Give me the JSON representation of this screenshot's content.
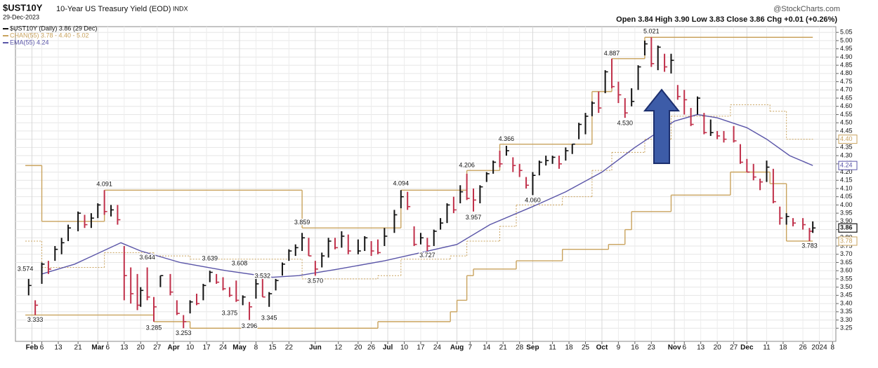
{
  "chart_data": {
    "type": "ohlc",
    "title": "$UST10Y",
    "subtitle": "10-Year US Treasury Yield (EOD)",
    "exchange": "INDX",
    "date_label": "29-Dec-2023",
    "quote": "Open 3.84  High 3.90  Low 3.83  Close 3.86  Chg +0.01 (+0.26%)",
    "source": "@StockCharts.com",
    "xlim": [
      "2023-01-25",
      "2024-01-09"
    ],
    "ylim": [
      3.17,
      5.085
    ],
    "grid": true,
    "xticks": [
      {
        "value": "2023-02-01",
        "label": "Feb"
      },
      {
        "value": "2023-02-06",
        "label": "6"
      },
      {
        "value": "2023-02-13",
        "label": "13"
      },
      {
        "value": "2023-02-21",
        "label": "21"
      },
      {
        "value": "2023-03-01",
        "label": "Mar"
      },
      {
        "value": "2023-03-06",
        "label": "6"
      },
      {
        "value": "2023-03-13",
        "label": "13"
      },
      {
        "value": "2023-03-20",
        "label": "20"
      },
      {
        "value": "2023-03-27",
        "label": "27"
      },
      {
        "value": "2023-04-03",
        "label": "Apr"
      },
      {
        "value": "2023-04-10",
        "label": "10"
      },
      {
        "value": "2023-04-17",
        "label": "17"
      },
      {
        "value": "2023-04-24",
        "label": "24"
      },
      {
        "value": "2023-05-01",
        "label": "May"
      },
      {
        "value": "2023-05-08",
        "label": "8"
      },
      {
        "value": "2023-05-15",
        "label": "15"
      },
      {
        "value": "2023-05-22",
        "label": "22"
      },
      {
        "value": "2023-06-01",
        "label": "Jun"
      },
      {
        "value": "2023-06-12",
        "label": "12"
      },
      {
        "value": "2023-06-20",
        "label": "20"
      },
      {
        "value": "2023-06-26",
        "label": "26"
      },
      {
        "value": "2023-07-03",
        "label": "Jul"
      },
      {
        "value": "2023-07-10",
        "label": "10"
      },
      {
        "value": "2023-07-17",
        "label": "17"
      },
      {
        "value": "2023-07-24",
        "label": "24"
      },
      {
        "value": "2023-08-01",
        "label": "Aug"
      },
      {
        "value": "2023-08-07",
        "label": "7"
      },
      {
        "value": "2023-08-14",
        "label": "14"
      },
      {
        "value": "2023-08-21",
        "label": "21"
      },
      {
        "value": "2023-08-28",
        "label": "28"
      },
      {
        "value": "2023-09-01",
        "label": "Sep"
      },
      {
        "value": "2023-09-11",
        "label": "11"
      },
      {
        "value": "2023-09-18",
        "label": "18"
      },
      {
        "value": "2023-09-25",
        "label": "25"
      },
      {
        "value": "2023-10-02",
        "label": "Oct"
      },
      {
        "value": "2023-10-09",
        "label": "9"
      },
      {
        "value": "2023-10-16",
        "label": "16"
      },
      {
        "value": "2023-10-23",
        "label": "23"
      },
      {
        "value": "2023-11-01",
        "label": "Nov"
      },
      {
        "value": "2023-11-06",
        "label": "6"
      },
      {
        "value": "2023-11-13",
        "label": "13"
      },
      {
        "value": "2023-11-20",
        "label": "20"
      },
      {
        "value": "2023-11-27",
        "label": "27"
      },
      {
        "value": "2023-12-01",
        "label": "Dec"
      },
      {
        "value": "2023-12-11",
        "label": "11"
      },
      {
        "value": "2023-12-18",
        "label": "18"
      },
      {
        "value": "2023-12-26",
        "label": "26"
      },
      {
        "value": "2024-01-02",
        "label": "2024"
      },
      {
        "value": "2024-01-08",
        "label": "8"
      }
    ],
    "yticks": [
      3.25,
      {
        "value": 3.3,
        "label": "3.30"
      },
      3.35,
      {
        "value": 3.4,
        "label": "3.40"
      },
      3.45,
      {
        "value": 3.5,
        "label": "3.50"
      },
      3.55,
      {
        "value": 3.6,
        "label": "3.60"
      },
      3.65,
      {
        "value": 3.7,
        "label": "3.70"
      },
      3.75,
      {
        "value": 3.8,
        "label": "3.80"
      },
      3.85,
      {
        "value": 3.9,
        "label": "3.90"
      },
      3.95,
      {
        "value": 4,
        "label": "4.00"
      },
      4.05,
      {
        "value": 4.1,
        "label": "4.10"
      },
      4.15,
      {
        "value": 4.2,
        "label": "4.20"
      },
      4.25,
      {
        "value": 4.3,
        "label": "4.30"
      },
      4.35,
      {
        "value": 4.4,
        "label": "4.40"
      },
      4.45,
      {
        "value": 4.5,
        "label": "4.50"
      },
      4.55,
      {
        "value": 4.6,
        "label": "4.60"
      },
      4.65,
      {
        "value": 4.7,
        "label": "4.70"
      },
      4.75,
      {
        "value": 4.8,
        "label": "4.80"
      },
      4.85,
      {
        "value": 4.9,
        "label": "4.90"
      },
      4.95,
      {
        "value": 5,
        "label": "5.00"
      },
      5.05
    ],
    "price": {
      "name": "$UST10Y (Daily) 3.86 (29 Dec)",
      "up_color": "#111111",
      "down_color": "#c0304a",
      "close_label": "3.86",
      "x": [
        "2023-01-31",
        "2023-02-02",
        "2023-02-06",
        "2023-02-08",
        "2023-02-10",
        "2023-02-14",
        "2023-02-16",
        "2023-02-21",
        "2023-02-23",
        "2023-02-27",
        "2023-03-01",
        "2023-03-03",
        "2023-03-07",
        "2023-03-09",
        "2023-03-13",
        "2023-03-15",
        "2023-03-17",
        "2023-03-20",
        "2023-03-22",
        "2023-03-24",
        "2023-03-28",
        "2023-03-31",
        "2023-04-04",
        "2023-04-06",
        "2023-04-10",
        "2023-04-12",
        "2023-04-14",
        "2023-04-18",
        "2023-04-20",
        "2023-04-24",
        "2023-04-26",
        "2023-04-28",
        "2023-05-02",
        "2023-05-04",
        "2023-05-08",
        "2023-05-10",
        "2023-05-12",
        "2023-05-16",
        "2023-05-18",
        "2023-05-22",
        "2023-05-24",
        "2023-05-26",
        "2023-05-30",
        "2023-06-01",
        "2023-06-05",
        "2023-06-07",
        "2023-06-09",
        "2023-06-13",
        "2023-06-15",
        "2023-06-20",
        "2023-06-22",
        "2023-06-26",
        "2023-06-28",
        "2023-06-30",
        "2023-07-05",
        "2023-07-07",
        "2023-07-11",
        "2023-07-13",
        "2023-07-17",
        "2023-07-19",
        "2023-07-21",
        "2023-07-25",
        "2023-07-27",
        "2023-07-31",
        "2023-08-02",
        "2023-08-04",
        "2023-08-08",
        "2023-08-10",
        "2023-08-14",
        "2023-08-16",
        "2023-08-18",
        "2023-08-22",
        "2023-08-24",
        "2023-08-28",
        "2023-08-30",
        "2023-09-01",
        "2023-09-05",
        "2023-09-07",
        "2023-09-11",
        "2023-09-13",
        "2023-09-15",
        "2023-09-19",
        "2023-09-21",
        "2023-09-25",
        "2023-09-27",
        "2023-09-29",
        "2023-10-03",
        "2023-10-05",
        "2023-10-09",
        "2023-10-11",
        "2023-10-13",
        "2023-10-17",
        "2023-10-19",
        "2023-10-23",
        "2023-10-25",
        "2023-10-27",
        "2023-10-31",
        "2023-11-02",
        "2023-11-06",
        "2023-11-08",
        "2023-11-10",
        "2023-11-14",
        "2023-11-16",
        "2023-11-20",
        "2023-11-22",
        "2023-11-27",
        "2023-11-29",
        "2023-12-01",
        "2023-12-05",
        "2023-12-07",
        "2023-12-11",
        "2023-12-13",
        "2023-12-15",
        "2023-12-19",
        "2023-12-21",
        "2023-12-26",
        "2023-12-28",
        "2023-12-29"
      ],
      "high": [
        3.55,
        3.42,
        3.65,
        3.66,
        3.75,
        3.8,
        3.88,
        3.96,
        3.94,
        3.95,
        4.01,
        4.09,
        4.0,
        4.0,
        3.75,
        3.62,
        3.58,
        3.5,
        3.62,
        3.44,
        3.57,
        3.58,
        3.42,
        3.33,
        3.42,
        3.46,
        3.52,
        3.6,
        3.58,
        3.56,
        3.5,
        3.54,
        3.45,
        3.41,
        3.55,
        3.55,
        3.47,
        3.55,
        3.65,
        3.73,
        3.76,
        3.83,
        3.8,
        3.66,
        3.71,
        3.8,
        3.8,
        3.84,
        3.82,
        3.79,
        3.81,
        3.78,
        3.79,
        3.86,
        3.97,
        4.09,
        4.08,
        3.87,
        3.83,
        3.8,
        3.85,
        3.92,
        4.01,
        4.05,
        4.12,
        4.19,
        4.1,
        4.12,
        4.2,
        4.27,
        4.33,
        4.36,
        4.29,
        4.25,
        4.17,
        4.2,
        4.27,
        4.3,
        4.3,
        4.3,
        4.35,
        4.37,
        4.5,
        4.56,
        4.63,
        4.69,
        4.82,
        4.89,
        4.75,
        4.65,
        4.71,
        4.85,
        5.0,
        5.02,
        4.97,
        4.92,
        4.92,
        4.73,
        4.7,
        4.59,
        4.66,
        4.56,
        4.52,
        4.45,
        4.45,
        4.48,
        4.37,
        4.28,
        4.25,
        4.16,
        4.27,
        4.22,
        3.99,
        3.95,
        3.92,
        3.92,
        3.86,
        3.9
      ],
      "low": [
        3.45,
        3.33,
        3.52,
        3.58,
        3.66,
        3.7,
        3.78,
        3.84,
        3.86,
        3.86,
        3.92,
        3.94,
        3.93,
        3.88,
        3.42,
        3.4,
        3.36,
        3.38,
        3.42,
        3.29,
        3.5,
        3.45,
        3.33,
        3.25,
        3.34,
        3.39,
        3.42,
        3.53,
        3.52,
        3.48,
        3.44,
        3.41,
        3.39,
        3.3,
        3.43,
        3.44,
        3.38,
        3.48,
        3.57,
        3.66,
        3.69,
        3.72,
        3.69,
        3.57,
        3.62,
        3.68,
        3.73,
        3.74,
        3.7,
        3.7,
        3.72,
        3.69,
        3.7,
        3.75,
        3.83,
        3.98,
        3.97,
        3.75,
        3.76,
        3.72,
        3.75,
        3.85,
        3.89,
        3.95,
        4.01,
        4.03,
        3.96,
        4.01,
        4.14,
        4.19,
        4.23,
        4.3,
        4.2,
        4.17,
        4.1,
        4.06,
        4.18,
        4.24,
        4.25,
        4.22,
        4.27,
        4.31,
        4.4,
        4.43,
        4.54,
        4.56,
        4.68,
        4.71,
        4.62,
        4.53,
        4.6,
        4.7,
        4.91,
        4.84,
        4.82,
        4.81,
        4.8,
        4.64,
        4.55,
        4.48,
        4.55,
        4.43,
        4.42,
        4.4,
        4.38,
        4.38,
        4.25,
        4.2,
        4.15,
        4.09,
        4.14,
        4.01,
        3.88,
        3.88,
        3.87,
        3.85,
        3.78,
        3.83
      ],
      "close": [
        3.51,
        3.39,
        3.64,
        3.61,
        3.73,
        3.77,
        3.86,
        3.95,
        3.88,
        3.92,
        4.0,
        3.96,
        3.97,
        3.91,
        3.57,
        3.46,
        3.39,
        3.48,
        3.44,
        3.38,
        3.57,
        3.47,
        3.34,
        3.29,
        3.41,
        3.4,
        3.51,
        3.59,
        3.53,
        3.49,
        3.45,
        3.42,
        3.44,
        3.38,
        3.52,
        3.44,
        3.46,
        3.54,
        3.64,
        3.72,
        3.74,
        3.8,
        3.69,
        3.61,
        3.69,
        3.78,
        3.74,
        3.81,
        3.72,
        3.72,
        3.8,
        3.72,
        3.71,
        3.81,
        3.94,
        4.05,
        3.99,
        3.76,
        3.8,
        3.75,
        3.84,
        3.89,
        4.0,
        3.97,
        4.08,
        4.04,
        4.03,
        4.11,
        4.19,
        4.26,
        4.25,
        4.33,
        4.24,
        4.21,
        4.12,
        4.18,
        4.26,
        4.27,
        4.29,
        4.25,
        4.33,
        4.37,
        4.49,
        4.54,
        4.62,
        4.59,
        4.81,
        4.72,
        4.67,
        4.56,
        4.63,
        4.84,
        4.98,
        4.86,
        4.96,
        4.84,
        4.88,
        4.66,
        4.64,
        4.49,
        4.65,
        4.44,
        4.44,
        4.42,
        4.4,
        4.39,
        4.26,
        4.2,
        4.17,
        4.14,
        4.23,
        4.02,
        3.92,
        3.93,
        3.89,
        3.88,
        3.84,
        3.86
      ]
    },
    "overlays": [
      {
        "name": "CHAN(55) 3.78 - 4.40 - 5.02",
        "style": "step",
        "color": "#c9a35e",
        "x": [
          "2023-01-30",
          "2023-02-06",
          "2023-03-03",
          "2023-05-26",
          "2023-07-07",
          "2023-08-04",
          "2023-08-18",
          "2023-09-27",
          "2023-10-05",
          "2023-10-19",
          "2023-12-29"
        ],
        "values": [
          4.24,
          3.9,
          4.09,
          3.86,
          4.09,
          4.21,
          4.37,
          4.69,
          4.89,
          5.02,
          5.02
        ]
      },
      {
        "style": "dotted-step",
        "color": "#c9a35e",
        "end_label": "4.40",
        "x": [
          "2023-01-30",
          "2023-02-06",
          "2023-03-03",
          "2023-03-24",
          "2023-04-10",
          "2023-05-26",
          "2023-06-28",
          "2023-07-07",
          "2023-07-28",
          "2023-08-04",
          "2023-08-18",
          "2023-08-25",
          "2023-09-14",
          "2023-09-27",
          "2023-10-05",
          "2023-10-19",
          "2023-10-31",
          "2023-11-24",
          "2023-12-12",
          "2023-12-19",
          "2023-12-29"
        ],
        "values": [
          3.78,
          3.62,
          3.71,
          3.69,
          3.67,
          3.55,
          3.57,
          3.67,
          3.69,
          3.78,
          3.87,
          4.0,
          4.05,
          4.21,
          4.32,
          4.4,
          4.54,
          4.61,
          4.57,
          4.4,
          4.4
        ]
      },
      {
        "style": "step",
        "color": "#c9a35e",
        "end_label": "3.78",
        "x": [
          "2023-01-30",
          "2023-03-24",
          "2023-04-10",
          "2023-06-28",
          "2023-07-28",
          "2023-08-01",
          "2023-08-04",
          "2023-08-08",
          "2023-08-25",
          "2023-09-14",
          "2023-10-04",
          "2023-10-11",
          "2023-10-13",
          "2023-10-31",
          "2023-11-24",
          "2023-12-12",
          "2023-12-19",
          "2023-12-29"
        ],
        "values": [
          3.33,
          3.29,
          3.25,
          3.29,
          3.35,
          3.42,
          3.57,
          3.61,
          3.66,
          3.73,
          3.76,
          3.85,
          3.96,
          4.06,
          4.2,
          4.13,
          3.78,
          3.78
        ]
      },
      {
        "name": "EMA(55) 4.24",
        "style": "smooth",
        "color": "#5a55a8",
        "end_label": "4.24",
        "x": [
          "2023-02-06",
          "2023-02-20",
          "2023-03-10",
          "2023-03-20",
          "2023-04-05",
          "2023-04-25",
          "2023-05-15",
          "2023-05-25",
          "2023-06-10",
          "2023-06-30",
          "2023-07-15",
          "2023-08-01",
          "2023-08-15",
          "2023-09-01",
          "2023-09-15",
          "2023-10-01",
          "2023-10-15",
          "2023-11-01",
          "2023-11-10",
          "2023-11-20",
          "2023-12-01",
          "2023-12-10",
          "2023-12-20",
          "2023-12-29"
        ],
        "values": [
          3.58,
          3.64,
          3.77,
          3.72,
          3.65,
          3.6,
          3.56,
          3.57,
          3.61,
          3.66,
          3.71,
          3.76,
          3.88,
          3.99,
          4.08,
          4.2,
          4.35,
          4.51,
          4.55,
          4.53,
          4.47,
          4.4,
          4.3,
          4.24
        ]
      }
    ],
    "annotations": [
      {
        "x": "2023-01-30",
        "y": 3.574,
        "label": "3.574",
        "pos": "above"
      },
      {
        "x": "2023-02-02",
        "y": 3.333,
        "label": "3.333",
        "pos": "below"
      },
      {
        "x": "2023-03-03",
        "y": 4.091,
        "label": "4.091",
        "pos": "above"
      },
      {
        "x": "2023-03-22",
        "y": 3.644,
        "label": "3.644",
        "pos": "above"
      },
      {
        "x": "2023-03-24",
        "y": 3.285,
        "label": "3.285",
        "pos": "below"
      },
      {
        "x": "2023-04-06",
        "y": 3.253,
        "label": "3.253",
        "pos": "below"
      },
      {
        "x": "2023-04-18",
        "y": 3.639,
        "label": "3.639",
        "pos": "above"
      },
      {
        "x": "2023-04-26",
        "y": 3.375,
        "label": "3.375",
        "pos": "below"
      },
      {
        "x": "2023-05-01",
        "y": 3.608,
        "label": "3.608",
        "pos": "above"
      },
      {
        "x": "2023-05-04",
        "y": 3.296,
        "label": "3.296",
        "pos": "below"
      },
      {
        "x": "2023-05-10",
        "y": 3.532,
        "label": "3.532",
        "pos": "above"
      },
      {
        "x": "2023-05-12",
        "y": 3.345,
        "label": "3.345",
        "pos": "below"
      },
      {
        "x": "2023-05-26",
        "y": 3.859,
        "label": "3.859",
        "pos": "above"
      },
      {
        "x": "2023-06-01",
        "y": 3.57,
        "label": "3.570",
        "pos": "below"
      },
      {
        "x": "2023-07-07",
        "y": 4.094,
        "label": "4.094",
        "pos": "above"
      },
      {
        "x": "2023-07-19",
        "y": 3.727,
        "label": "3.727",
        "pos": "below"
      },
      {
        "x": "2023-08-04",
        "y": 4.206,
        "label": "4.206",
        "pos": "above"
      },
      {
        "x": "2023-08-08",
        "y": 3.957,
        "label": "3.957",
        "pos": "below"
      },
      {
        "x": "2023-08-22",
        "y": 4.366,
        "label": "4.366",
        "pos": "above"
      },
      {
        "x": "2023-09-01",
        "y": 4.06,
        "label": "4.060",
        "pos": "below"
      },
      {
        "x": "2023-10-05",
        "y": 4.887,
        "label": "4.887",
        "pos": "above"
      },
      {
        "x": "2023-10-11",
        "y": 4.53,
        "label": "4.530",
        "pos": "below"
      },
      {
        "x": "2023-10-23",
        "y": 5.021,
        "label": "5.021",
        "pos": "above"
      },
      {
        "x": "2023-12-28",
        "y": 3.783,
        "label": "3.783",
        "pos": "below"
      }
    ]
  }
}
